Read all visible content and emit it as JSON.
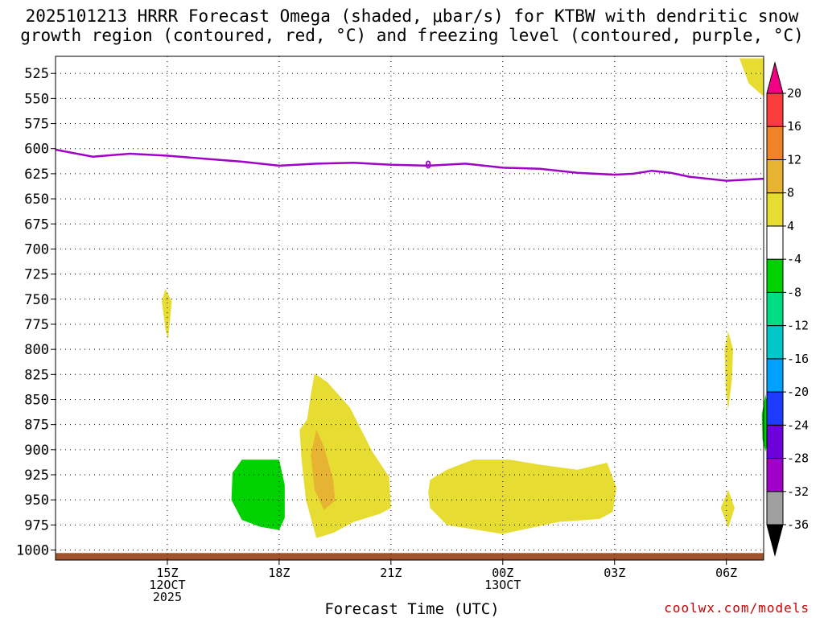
{
  "title_line1": "2025101213 HRRR Forecast Omega (shaded, μbar/s) for KTBW with dendritic snow",
  "title_line2": "growth region (contoured, red, °C) and freezing level (contoured, purple, °C)",
  "xlabel": "Forecast Time (UTC)",
  "credit": "coolwx.com/models",
  "chart_data": {
    "type": "time-height cross section",
    "model": "HRRR",
    "init": "2025101213",
    "station": "KTBW",
    "x_unit": "hours UTC (12 Oct 2025 = 0)",
    "xlim": [
      12.0,
      31.0
    ],
    "y_unit": "hPa",
    "ylim": [
      1010,
      508
    ],
    "y_ticks": [
      525,
      550,
      575,
      600,
      625,
      650,
      675,
      700,
      725,
      750,
      775,
      800,
      825,
      850,
      875,
      900,
      925,
      950,
      975,
      1000
    ],
    "x_ticks": [
      {
        "x": 15,
        "lines": [
          "15Z",
          "12OCT",
          "2025"
        ]
      },
      {
        "x": 18,
        "lines": [
          "18Z"
        ]
      },
      {
        "x": 21,
        "lines": [
          "21Z"
        ]
      },
      {
        "x": 24,
        "lines": [
          "00Z",
          "13OCT"
        ]
      },
      {
        "x": 27,
        "lines": [
          "03Z"
        ]
      },
      {
        "x": 30,
        "lines": [
          "06Z"
        ]
      }
    ],
    "freezing_level": {
      "color": "#a000c8",
      "label": "0",
      "label_at": [
        22.0,
        616
      ],
      "points": [
        [
          12.0,
          601
        ],
        [
          13.0,
          608
        ],
        [
          14.0,
          605
        ],
        [
          15.0,
          607
        ],
        [
          16.0,
          610
        ],
        [
          17.0,
          613
        ],
        [
          18.0,
          617
        ],
        [
          19.0,
          615
        ],
        [
          20.0,
          614
        ],
        [
          21.0,
          616
        ],
        [
          22.0,
          617
        ],
        [
          23.0,
          615
        ],
        [
          24.0,
          619
        ],
        [
          25.0,
          620
        ],
        [
          26.0,
          624
        ],
        [
          27.0,
          626
        ],
        [
          27.5,
          625
        ],
        [
          28.0,
          622
        ],
        [
          28.5,
          624
        ],
        [
          29.0,
          628
        ],
        [
          30.0,
          632
        ],
        [
          31.0,
          630
        ]
      ]
    },
    "omega_regions": [
      {
        "level": "4-8",
        "color": "#e6dc32",
        "points": [
          [
            14.85,
            752
          ],
          [
            14.95,
            740
          ],
          [
            15.12,
            752
          ],
          [
            15.02,
            790
          ],
          [
            14.95,
            780
          ]
        ]
      },
      {
        "level": "4-8",
        "color": "#e6dc32",
        "points": [
          [
            31.0,
            510
          ],
          [
            30.35,
            510
          ],
          [
            30.6,
            535
          ],
          [
            31.0,
            548
          ]
        ]
      },
      {
        "level": "4-8",
        "color": "#e6dc32",
        "points": [
          [
            18.75,
            870
          ],
          [
            18.85,
            845
          ],
          [
            18.95,
            824
          ],
          [
            19.3,
            833
          ],
          [
            19.9,
            858
          ],
          [
            20.5,
            902
          ],
          [
            20.95,
            927
          ],
          [
            21.0,
            958
          ],
          [
            20.7,
            964
          ],
          [
            20.0,
            972
          ],
          [
            19.45,
            983
          ],
          [
            19.0,
            988
          ],
          [
            18.72,
            950
          ],
          [
            18.6,
            910
          ],
          [
            18.55,
            880
          ]
        ]
      },
      {
        "level": "8-12",
        "color": "#e6b432",
        "points": [
          [
            19.0,
            880
          ],
          [
            19.2,
            897
          ],
          [
            19.45,
            930
          ],
          [
            19.5,
            951
          ],
          [
            19.2,
            960
          ],
          [
            18.95,
            940
          ],
          [
            18.85,
            905
          ]
        ]
      },
      {
        "level": "4-8",
        "color": "#e6dc32",
        "points": [
          [
            22.05,
            930
          ],
          [
            22.5,
            920
          ],
          [
            23.2,
            910
          ],
          [
            24.2,
            910
          ],
          [
            25.0,
            915
          ],
          [
            26.0,
            920
          ],
          [
            26.8,
            913
          ],
          [
            27.05,
            938
          ],
          [
            26.95,
            962
          ],
          [
            26.6,
            969
          ],
          [
            25.5,
            972
          ],
          [
            24.0,
            984
          ],
          [
            22.5,
            975
          ],
          [
            22.05,
            958
          ],
          [
            22.0,
            942
          ]
        ]
      },
      {
        "level": "4-8",
        "color": "#e6dc32",
        "points": [
          [
            29.95,
            800
          ],
          [
            30.05,
            782
          ],
          [
            30.18,
            800
          ],
          [
            30.15,
            830
          ],
          [
            30.05,
            860
          ],
          [
            29.98,
            840
          ]
        ]
      },
      {
        "level": "4-8",
        "color": "#e6dc32",
        "points": [
          [
            29.85,
            958
          ],
          [
            30.05,
            940
          ],
          [
            30.22,
            958
          ],
          [
            30.05,
            978
          ]
        ]
      },
      {
        "level": "-8--4",
        "color": "#00d200",
        "points": [
          [
            16.75,
            923
          ],
          [
            17.0,
            910
          ],
          [
            18.0,
            910
          ],
          [
            18.15,
            935
          ],
          [
            18.15,
            968
          ],
          [
            18.0,
            980
          ],
          [
            17.5,
            977
          ],
          [
            17.0,
            970
          ],
          [
            16.72,
            950
          ]
        ]
      },
      {
        "level": "-8--4",
        "color": "#00d200",
        "points": [
          [
            30.95,
            865
          ],
          [
            31.05,
            845
          ],
          [
            31.15,
            865
          ],
          [
            31.12,
            890
          ],
          [
            31.05,
            902
          ],
          [
            30.97,
            890
          ]
        ]
      }
    ],
    "ground_layer": {
      "color": "#a0522d",
      "from_hpa": 1003,
      "to_hpa": 1010
    },
    "colorbar": {
      "segments": [
        {
          "color": "#000000"
        },
        {
          "color": "#a0a0a0"
        },
        {
          "color": "#a000c8"
        },
        {
          "color": "#6e00dc"
        },
        {
          "color": "#1e3cff"
        },
        {
          "color": "#00a0ff"
        },
        {
          "color": "#00c8c8"
        },
        {
          "color": "#00dc82"
        },
        {
          "color": "#00d200"
        },
        {
          "color": "#ffffff"
        },
        {
          "color": "#e6dc32"
        },
        {
          "color": "#e6b432"
        },
        {
          "color": "#f08228"
        },
        {
          "color": "#fa3c3c"
        },
        {
          "color": "#f00082"
        }
      ],
      "labels": [
        "-36",
        "-32",
        "-28",
        "-24",
        "-20",
        "-16",
        "-12",
        "-8",
        "-4",
        "4",
        "8",
        "12",
        "16",
        "20"
      ]
    }
  }
}
